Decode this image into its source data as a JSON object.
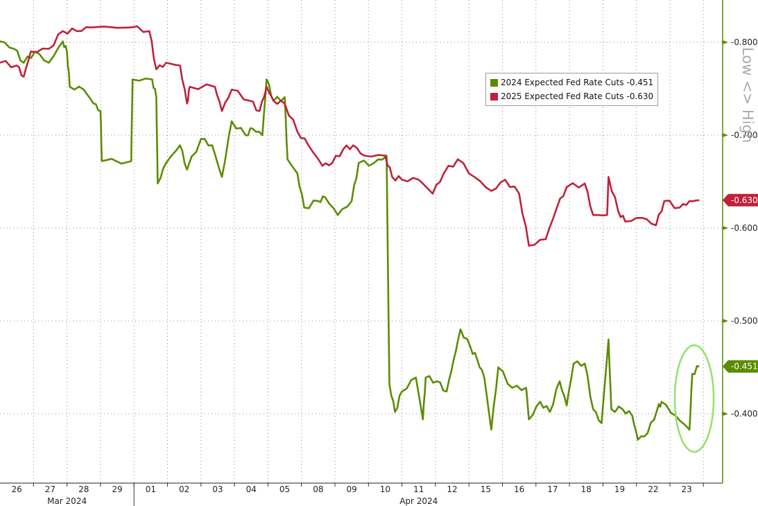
{
  "chart_data": {
    "type": "line",
    "title": "",
    "xlabel": "",
    "ylabel": "",
    "y_axis_label": "Low <> High",
    "y_inverted": true,
    "ylim": [
      -0.8,
      -0.35
    ],
    "yticks": [
      "-0.800",
      "-0.700",
      "-0.600",
      "-0.500",
      "-0.400"
    ],
    "ytick_values": [
      -0.8,
      -0.7,
      -0.6,
      -0.5,
      -0.4
    ],
    "x_dates": [
      "26",
      "27",
      "28",
      "29",
      "01",
      "02",
      "03",
      "04",
      "05",
      "08",
      "09",
      "10",
      "11",
      "12",
      "15",
      "16",
      "17",
      "18",
      "19",
      "22",
      "23"
    ],
    "months": [
      {
        "label": "Mar 2024",
        "first": 0,
        "last": 3
      },
      {
        "label": "Apr 2024",
        "first": 4,
        "last": 20
      }
    ],
    "grid": true,
    "legend_placement": "top-right",
    "series": [
      {
        "name": "2024 Expected Fed Rate Cuts",
        "last": "-0.451",
        "color": "#5b8c00",
        "points": [
          [
            "26",
            0,
            -0.801
          ],
          [
            "26",
            10,
            -0.793
          ],
          [
            "26",
            17,
            -0.778
          ],
          [
            "27",
            1,
            -0.79
          ],
          [
            "27",
            11,
            -0.778
          ],
          [
            "27",
            21,
            -0.801
          ],
          [
            "28",
            0,
            -0.79
          ],
          [
            "28",
            2,
            -0.752
          ],
          [
            "28",
            12,
            -0.749
          ],
          [
            "28",
            19,
            -0.734
          ],
          [
            "29",
            0,
            -0.726
          ],
          [
            "29",
            1,
            -0.672
          ],
          [
            "29",
            22,
            -0.672
          ],
          [
            "29",
            23,
            -0.76
          ],
          [
            "01",
            13,
            -0.76
          ],
          [
            "01",
            16,
            -0.741
          ],
          [
            "01",
            17,
            -0.648
          ],
          [
            "01",
            23,
            -0.67
          ],
          [
            "02",
            9,
            -0.689
          ],
          [
            "02",
            14,
            -0.663
          ],
          [
            "03",
            0,
            -0.696
          ],
          [
            "03",
            8,
            -0.689
          ],
          [
            "03",
            15,
            -0.655
          ],
          [
            "03",
            22,
            -0.715
          ],
          [
            "04",
            8,
            -0.7
          ],
          [
            "04",
            13,
            -0.707
          ],
          [
            "04",
            20,
            -0.7
          ],
          [
            "04",
            23,
            -0.76
          ],
          [
            "05",
            4,
            -0.737
          ],
          [
            "05",
            12,
            -0.741
          ],
          [
            "05",
            14,
            -0.674
          ],
          [
            "05",
            21,
            -0.659
          ],
          [
            "08",
            2,
            -0.622
          ],
          [
            "08",
            12,
            -0.629
          ],
          [
            "08",
            17,
            -0.633
          ],
          [
            "09",
            2,
            -0.614
          ],
          [
            "09",
            12,
            -0.629
          ],
          [
            "09",
            17,
            -0.67
          ],
          [
            "10",
            4,
            -0.67
          ],
          [
            "10",
            13,
            -0.678
          ],
          [
            "10",
            15,
            -0.432
          ],
          [
            "10",
            19,
            -0.402
          ],
          [
            "11",
            0,
            -0.424
          ],
          [
            "11",
            10,
            -0.439
          ],
          [
            "11",
            15,
            -0.394
          ],
          [
            "11",
            17,
            -0.439
          ],
          [
            "12",
            1,
            -0.435
          ],
          [
            "12",
            8,
            -0.424
          ],
          [
            "12",
            13,
            -0.458
          ],
          [
            "12",
            18,
            -0.491
          ],
          [
            "15",
            1,
            -0.472
          ],
          [
            "15",
            6,
            -0.458
          ],
          [
            "15",
            11,
            -0.439
          ],
          [
            "15",
            16,
            -0.383
          ],
          [
            "15",
            21,
            -0.45
          ],
          [
            "16",
            7,
            -0.428
          ],
          [
            "16",
            17,
            -0.428
          ],
          [
            "16",
            19,
            -0.394
          ],
          [
            "17",
            3,
            -0.413
          ],
          [
            "17",
            10,
            -0.402
          ],
          [
            "17",
            17,
            -0.435
          ],
          [
            "17",
            22,
            -0.409
          ],
          [
            "18",
            3,
            -0.454
          ],
          [
            "18",
            11,
            -0.454
          ],
          [
            "18",
            17,
            -0.405
          ],
          [
            "18",
            23,
            -0.39
          ],
          [
            "19",
            4,
            -0.48
          ],
          [
            "19",
            6,
            -0.405
          ],
          [
            "19",
            14,
            -0.405
          ],
          [
            "19",
            21,
            -0.398
          ],
          [
            "22",
            1,
            -0.372
          ],
          [
            "22",
            8,
            -0.379
          ],
          [
            "22",
            15,
            -0.405
          ],
          [
            "22",
            18,
            -0.413
          ],
          [
            "23",
            4,
            -0.398
          ],
          [
            "23",
            14,
            -0.383
          ],
          [
            "23",
            16,
            -0.443
          ],
          [
            "23",
            21,
            -0.451
          ]
        ]
      },
      {
        "name": "2025 Expected Fed Rate Cuts",
        "last": "-0.630",
        "color": "#c0203a",
        "points": [
          [
            "26",
            0,
            -0.778
          ],
          [
            "26",
            12,
            -0.775
          ],
          [
            "26",
            17,
            -0.763
          ],
          [
            "26",
            22,
            -0.79
          ],
          [
            "27",
            11,
            -0.793
          ],
          [
            "27",
            21,
            -0.812
          ],
          [
            "28",
            7,
            -0.812
          ],
          [
            "28",
            17,
            -0.816
          ],
          [
            "29",
            22,
            -0.816
          ],
          [
            "01",
            11,
            -0.812
          ],
          [
            "01",
            16,
            -0.771
          ],
          [
            "01",
            23,
            -0.778
          ],
          [
            "02",
            9,
            -0.775
          ],
          [
            "02",
            14,
            -0.734
          ],
          [
            "02",
            16,
            -0.752
          ],
          [
            "03",
            10,
            -0.752
          ],
          [
            "03",
            15,
            -0.726
          ],
          [
            "03",
            22,
            -0.749
          ],
          [
            "04",
            11,
            -0.737
          ],
          [
            "04",
            18,
            -0.726
          ],
          [
            "04",
            23,
            -0.752
          ],
          [
            "05",
            4,
            -0.737
          ],
          [
            "05",
            12,
            -0.734
          ],
          [
            "05",
            21,
            -0.704
          ],
          [
            "08",
            5,
            -0.689
          ],
          [
            "08",
            15,
            -0.667
          ],
          [
            "08",
            22,
            -0.67
          ],
          [
            "09",
            6,
            -0.685
          ],
          [
            "09",
            13,
            -0.689
          ],
          [
            "09",
            21,
            -0.678
          ],
          [
            "10",
            12,
            -0.678
          ],
          [
            "10",
            17,
            -0.655
          ],
          [
            "11",
            0,
            -0.652
          ],
          [
            "11",
            12,
            -0.652
          ],
          [
            "11",
            22,
            -0.637
          ],
          [
            "12",
            6,
            -0.659
          ],
          [
            "12",
            16,
            -0.674
          ],
          [
            "15",
            4,
            -0.655
          ],
          [
            "15",
            16,
            -0.64
          ],
          [
            "16",
            2,
            -0.652
          ],
          [
            "16",
            12,
            -0.637
          ],
          [
            "16",
            19,
            -0.581
          ],
          [
            "17",
            7,
            -0.588
          ],
          [
            "17",
            15,
            -0.622
          ],
          [
            "17",
            22,
            -0.644
          ],
          [
            "18",
            11,
            -0.648
          ],
          [
            "18",
            17,
            -0.614
          ],
          [
            "19",
            3,
            -0.614
          ],
          [
            "19",
            4,
            -0.655
          ],
          [
            "19",
            11,
            -0.618
          ],
          [
            "19",
            16,
            -0.607
          ],
          [
            "22",
            4,
            -0.611
          ],
          [
            "22",
            14,
            -0.603
          ],
          [
            "22",
            20,
            -0.629
          ],
          [
            "23",
            7,
            -0.622
          ],
          [
            "23",
            14,
            -0.629
          ],
          [
            "23",
            21,
            -0.63
          ]
        ]
      }
    ]
  }
}
